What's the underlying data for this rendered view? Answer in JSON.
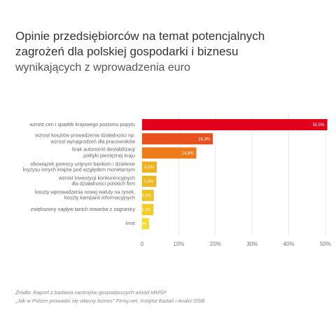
{
  "chart_data": {
    "type": "hbar",
    "title": [
      "Opinie przedsiębiorców na temat potencjalnych",
      "zagrożeń dla polskiej gospodarki i biznesu"
    ],
    "subtitle": "wynikających z wprowadzenia euro",
    "categories": [
      "wzrost cen i spadek krajowego poziomu popytu",
      "wzrost kosztów prowadzenia działalności np.\nwzrost wynagrodzeń dla pracowników",
      "brak autonomii destabilizacji\npolityki pieniężnej kraju",
      "obowiązek pomocy unijnym bankom i dzielenie\nkryzysu innych krajów pod względem monetarnym",
      "wzrost inwestycji konkurencyjnych\ndla działalności polskich firm",
      "koszty wprowadzenia nowej waluty na rynek,\nkoszty kampanii informacyjnych",
      "zwiększony napływ tanich towarów z zagranicy",
      "inne"
    ],
    "values": [
      50.5,
      19.3,
      14.8,
      4.0,
      3.9,
      3.2,
      3.1,
      1.9
    ],
    "value_labels": [
      "50,5%",
      "19,3%",
      "14,8%",
      "4,0%",
      "3,9%",
      "3,2%",
      "3,1%",
      "1,9%"
    ],
    "colors": [
      "#e2001a",
      "#e8501e",
      "#ee7a1a",
      "#f0b21c",
      "#f0b81c",
      "#f2c21e",
      "#f4cc20",
      "#f6dc2a"
    ],
    "xlim": [
      0,
      50
    ],
    "xticks": [
      {
        "value": 0,
        "label": "0"
      },
      {
        "value": 10,
        "label": "10%"
      },
      {
        "value": 20,
        "label": "20%"
      },
      {
        "value": 30,
        "label": "30%"
      },
      {
        "value": 40,
        "label": "40%"
      },
      {
        "value": 50,
        "label": "50%"
      }
    ],
    "grid": true,
    "source": [
      "Źródło: Raport z badania nastrojów gospodarczych wśród MMŚP",
      "„Jak w Polsce prowadzi się własny biznes\" Firmy.net, Instytut Badań i Analiz OSB"
    ]
  }
}
